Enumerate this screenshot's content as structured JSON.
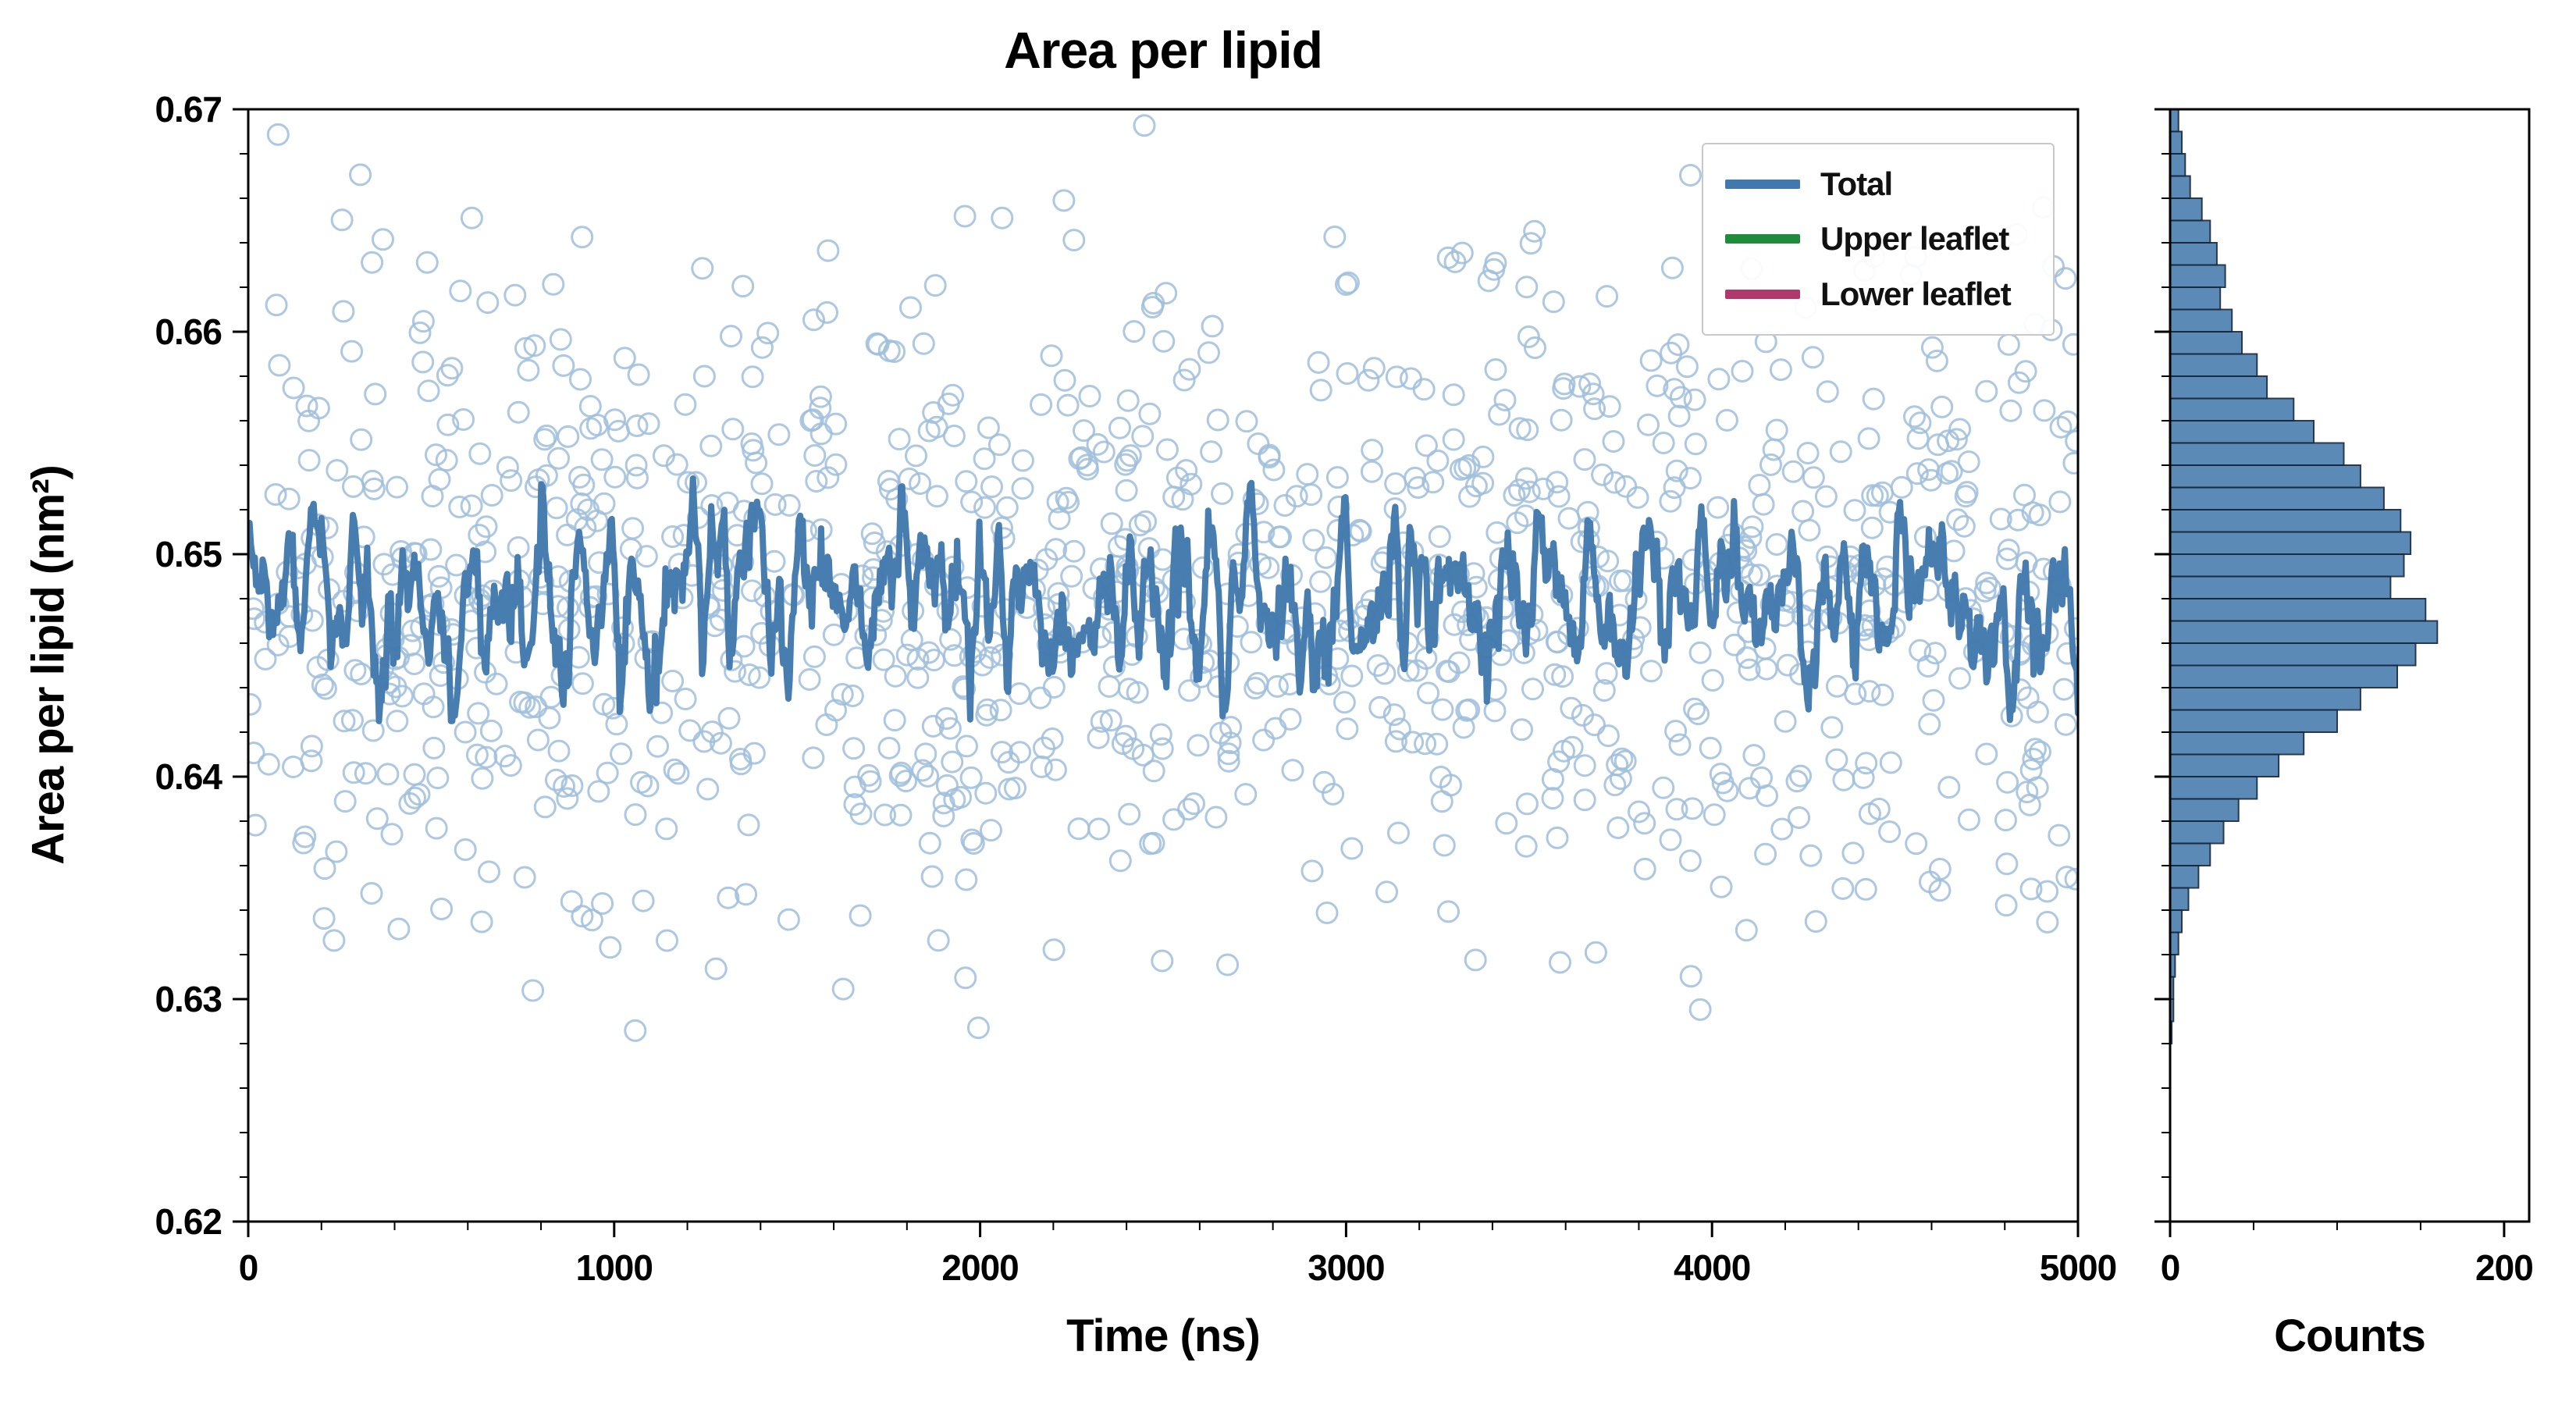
{
  "figure": {
    "title": "Area per lipid",
    "background": "#ffffff"
  },
  "colors": {
    "total_line": "#4279ad",
    "upper_leaflet": "#1e8c3a",
    "lower_leaflet": "#b0396b",
    "scatter_edge": "#9fbeda",
    "hist_fill": "#4e81b0",
    "hist_edge": "#16293d",
    "axis": "#000000"
  },
  "main_plot": {
    "xlabel": "Time (ns)",
    "ylabel": "Area per lipid (nm²)",
    "xlim": [
      0,
      5000
    ],
    "ylim": [
      0.62,
      0.67
    ],
    "xticks": [
      0,
      1000,
      2000,
      3000,
      4000,
      5000
    ],
    "yticks": [
      0.62,
      0.63,
      0.64,
      0.65,
      0.66,
      0.67
    ],
    "x_minor_step": 200,
    "y_minor_step": 0.002
  },
  "hist_plot": {
    "xlabel": "Counts",
    "xlim": [
      0,
      215
    ],
    "xticks": [
      0,
      200
    ],
    "x_minor_step": 50
  },
  "legend": {
    "items": [
      {
        "label": "Total",
        "color": "#4279ad"
      },
      {
        "label": "Upper leaflet",
        "color": "#1e8c3a"
      },
      {
        "label": "Lower leaflet",
        "color": "#b0396b"
      }
    ]
  },
  "chart_data": [
    {
      "type": "line",
      "name": "Total",
      "title": "Area per lipid",
      "xlabel": "Time (ns)",
      "ylabel": "Area per lipid (nm²)",
      "xlim": [
        0,
        5000
      ],
      "ylim": [
        0.62,
        0.67
      ],
      "legend_position": "upper right",
      "grid": false,
      "summary": {
        "mean": 0.648,
        "std": 0.002,
        "min": 0.6425,
        "max": 0.6553
      },
      "generator": {
        "n": 1400,
        "seed": 1234,
        "smooth_window": 3
      }
    },
    {
      "type": "scatter",
      "name": "Per-frame area samples",
      "marker": "open-circle",
      "xlim": [
        0,
        5000
      ],
      "summary": {
        "mean": 0.6482,
        "std": 0.0072,
        "min": 0.6285,
        "max": 0.6693
      },
      "generator": {
        "n": 1150,
        "seed": 987654
      }
    },
    {
      "type": "histogram",
      "name": "Counts",
      "orientation": "horizontal",
      "xlabel": "Counts",
      "xlim": [
        0,
        215
      ],
      "bin_start": 0.628,
      "bin_width": 0.001,
      "counts": [
        1,
        2,
        2,
        3,
        5,
        7,
        11,
        17,
        24,
        32,
        41,
        52,
        65,
        80,
        100,
        114,
        136,
        147,
        160,
        153,
        132,
        140,
        144,
        138,
        128,
        114,
        104,
        86,
        74,
        58,
        52,
        43,
        37,
        30,
        33,
        28,
        24,
        19,
        12,
        9,
        7,
        5
      ]
    }
  ]
}
